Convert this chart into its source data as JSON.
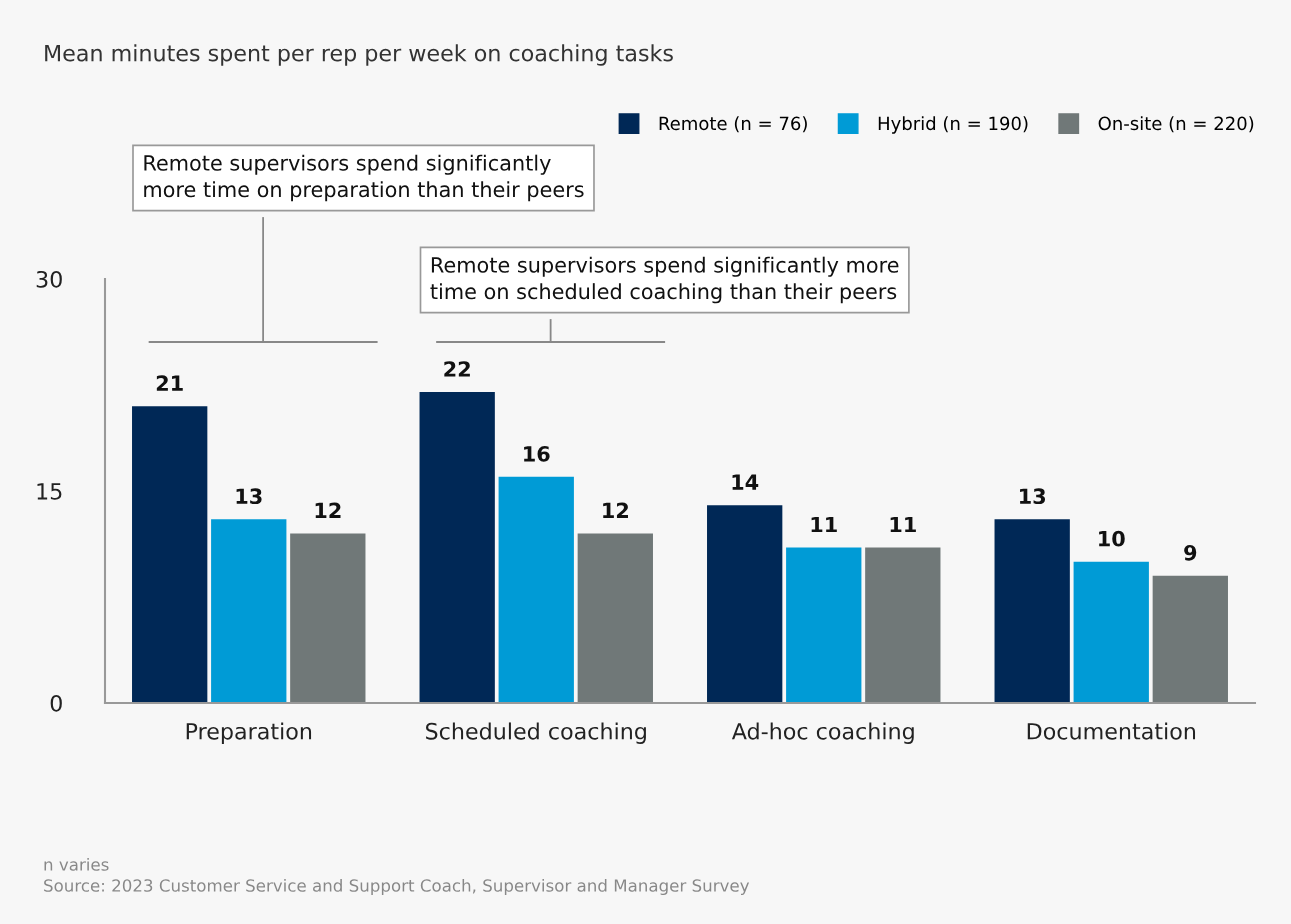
{
  "chart_data": {
    "type": "bar",
    "title": "Mean minutes spent per rep per week on coaching tasks",
    "categories": [
      "Preparation",
      "Scheduled coaching",
      "Ad-hoc coaching",
      "Documentation"
    ],
    "series": [
      {
        "name": "Remote (n = 76)",
        "color": "#002856",
        "values": [
          21,
          22,
          14,
          13
        ]
      },
      {
        "name": "Hybrid (n = 190)",
        "color": "#009bd6",
        "values": [
          13,
          16,
          11,
          10
        ]
      },
      {
        "name": "On-site (n = 220)",
        "color": "#707878",
        "values": [
          12,
          12,
          11,
          9
        ]
      }
    ],
    "ylim": [
      0,
      30
    ],
    "yticks": [
      0,
      15,
      30
    ],
    "grid": false,
    "legend": "top right",
    "data_labels": true,
    "annotations": [
      "Remote supervisors spend significantly\nmore time on preparation than their peers",
      "Remote supervisors spend significantly more\ntime on scheduled coaching than their peers",
      "n varies",
      "Source: 2023 Customer Service and Support Coach, Supervisor and Manager Survey"
    ]
  }
}
